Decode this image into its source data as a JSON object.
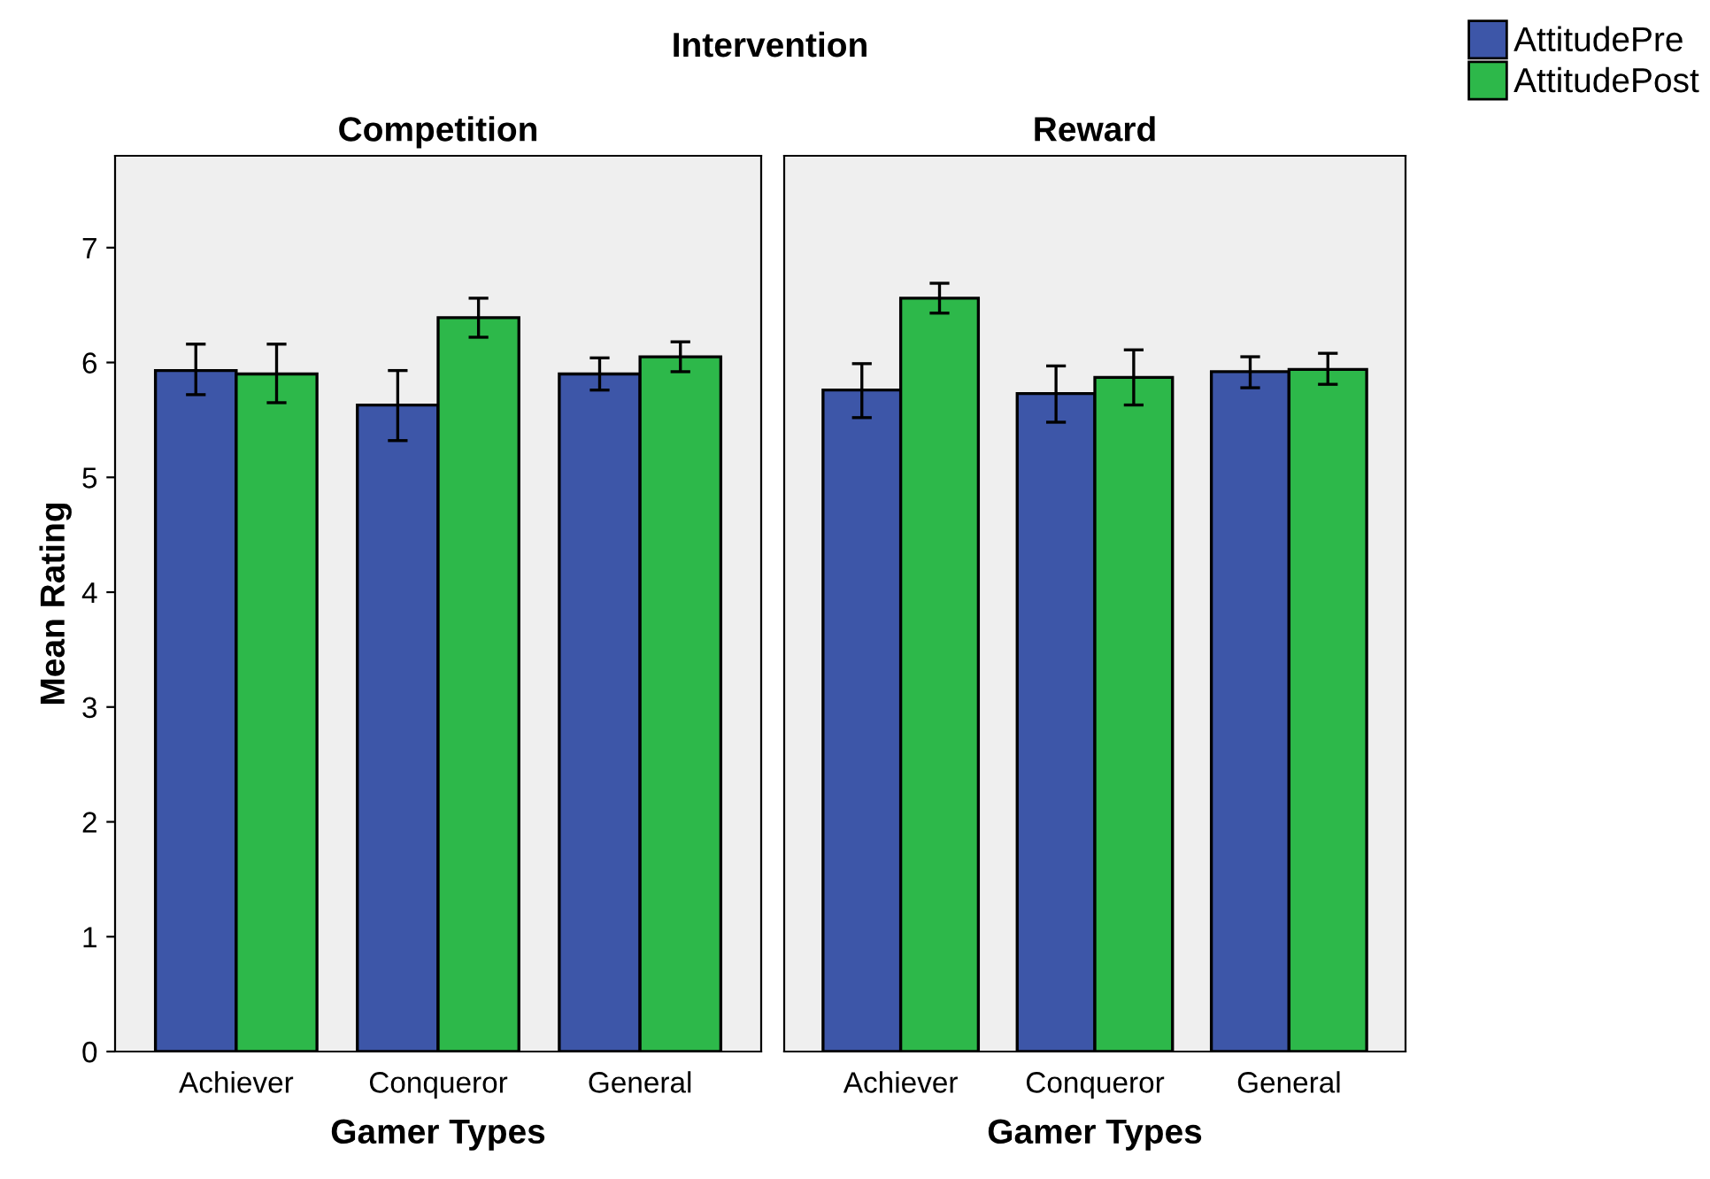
{
  "chart_data": [
    {
      "type": "bar",
      "title": "Competition",
      "annotations": [
        "Intervention"
      ],
      "xlabel": "Gamer Types",
      "ylabel": "Mean Rating",
      "categories": [
        "Achiever",
        "Conqueror",
        "General"
      ],
      "ylim": [
        0,
        7.8
      ],
      "yticks": [
        0,
        1,
        2,
        3,
        4,
        5,
        6,
        7
      ],
      "grid": false,
      "legend": "top right",
      "series": [
        {
          "name": "AttitudePre",
          "color": "#3d56a8",
          "values": [
            5.93,
            5.63,
            5.9
          ],
          "errors": [
            [
              5.72,
              6.16
            ],
            [
              5.32,
              5.93
            ],
            [
              5.76,
              6.04
            ]
          ]
        },
        {
          "name": "AttitudePost",
          "color": "#2db84a",
          "values": [
            5.9,
            6.39,
            6.05
          ],
          "errors": [
            [
              5.65,
              6.16
            ],
            [
              6.22,
              6.56
            ],
            [
              5.92,
              6.18
            ]
          ]
        }
      ]
    },
    {
      "type": "bar",
      "title": "Reward",
      "xlabel": "Gamer Types",
      "categories": [
        "Achiever",
        "Conqueror",
        "General"
      ],
      "ylim": [
        0,
        7.8
      ],
      "yticks": [
        0,
        1,
        2,
        3,
        4,
        5,
        6,
        7
      ],
      "tick_labels": "x",
      "grid": false,
      "series": [
        {
          "color": "#3d56a8",
          "values": [
            5.76,
            5.73,
            5.92
          ],
          "errors": [
            [
              5.52,
              5.99
            ],
            [
              5.48,
              5.97
            ],
            [
              5.78,
              6.05
            ]
          ]
        },
        {
          "color": "#2db84a",
          "values": [
            6.56,
            5.87,
            5.94
          ],
          "errors": [
            [
              6.43,
              6.69
            ],
            [
              5.63,
              6.11
            ],
            [
              5.81,
              6.08
            ]
          ]
        }
      ]
    }
  ]
}
